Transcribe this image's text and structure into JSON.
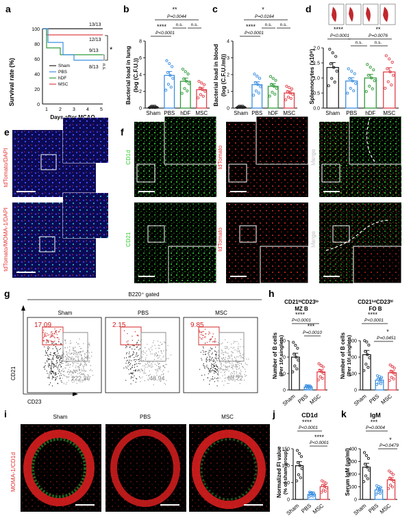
{
  "panels": {
    "a": {
      "letter": "a",
      "ylabel": "Survival rate (%)",
      "xlabel": "Days after MCAO",
      "yticks": [
        "0",
        "20",
        "40",
        "60",
        "80",
        "100"
      ],
      "xticks": [
        "1",
        "2",
        "3",
        "4",
        "5"
      ],
      "legend": [
        "Sham",
        "PBS",
        "hDF",
        "MSC"
      ],
      "counts": [
        "13/13",
        "12/13",
        "9/13",
        "8/13"
      ],
      "sig": [
        "*",
        "n.s."
      ]
    },
    "b": {
      "letter": "b",
      "ylabel": "Bacterial load in lung",
      "ylabel2": "(log (C.F.U.))",
      "yticks": [
        "0",
        "2",
        "4",
        "6",
        "8"
      ],
      "groups": [
        "Sham",
        "PBS",
        "hDF",
        "MSC"
      ],
      "means": [
        0.1,
        3.9,
        3.2,
        2.2
      ],
      "ymax": 8,
      "sig_top": "**",
      "p_top": "P=0.0044",
      "sig_mid": "****",
      "p_mid": "P<0.0001",
      "ns1": "n.s.",
      "ns2": "n.s."
    },
    "c": {
      "letter": "c",
      "ylabel": "Bacterial load in blood",
      "ylabel2": "(log (C.F.U./ml))",
      "yticks": [
        "0",
        "1",
        "2",
        "3",
        "4"
      ],
      "groups": [
        "Sham",
        "PBS",
        "hDF",
        "MSC"
      ],
      "means": [
        0.05,
        1.4,
        1.3,
        0.9
      ],
      "ymax": 4,
      "sig_top": "*",
      "p_top": "P=0.0164",
      "sig_mid": "****",
      "p_mid": "P<0.0001",
      "ns1": "n.s.",
      "ns2": "n.s."
    },
    "d": {
      "letter": "d",
      "ylabel": "Spleenocytes (x10⁸)",
      "yticks": [
        "0.0",
        "0.5",
        "1.0",
        "1.5",
        "2.0"
      ],
      "groups": [
        "Sham",
        "PBS",
        "hDF",
        "MSC"
      ],
      "means": [
        1.35,
        0.9,
        1.0,
        1.2
      ],
      "ymax": 2,
      "sig1": "****",
      "p1": "P<0.0001",
      "sig2": "**",
      "p2": "P=0.0076",
      "ns1": "n.s.",
      "ns2": "n.s."
    },
    "e": {
      "letter": "e",
      "label1": "tdTomato/DAPI",
      "label2": "tdTomato/MOMA-1/DAPI"
    },
    "f": {
      "letter": "f",
      "row1": [
        "CD1d",
        "tdTomato",
        "Merge"
      ],
      "row2": [
        "CD21",
        "tdTomato",
        "Merge"
      ]
    },
    "g": {
      "letter": "g",
      "gate": "B220⁺ gated",
      "titles": [
        "Sham",
        "PBS",
        "MSC"
      ],
      "red": [
        "17.09",
        "2.15",
        "9.85"
      ],
      "gray": [
        "222.36",
        "48.94",
        "68.72"
      ],
      "xlabel": "CD23",
      "ylabel": "CD21"
    },
    "h": {
      "letter": "h",
      "title1": "CD21ʰⁱCD23ˡᵒ",
      "sub1": "MZ B",
      "title2": "CD21ⁱⁿᵗCD23ʰⁱ",
      "sub2": "FO B",
      "ylabel": "Number of B cells",
      "ylabel2": "(Per 10³ singlets)",
      "yticks1": [
        "0",
        "10",
        "20",
        "30"
      ],
      "yticks2": [
        "0",
        "100",
        "200",
        "300"
      ],
      "groups": [
        "Sham",
        "PBS",
        "MSC"
      ],
      "means1": [
        20,
        1.8,
        11
      ],
      "means2": [
        215,
        60,
        105
      ],
      "sigA1": "****",
      "pA1": "P<0.0001",
      "sigA2": "***",
      "pA2": "P=0.0010",
      "sigB1": "****",
      "pB1": "P<0.0001",
      "sigB2": "*",
      "pB2": "P=0.0451"
    },
    "i": {
      "letter": "i",
      "titles": [
        "Sham",
        "PBS",
        "MSC"
      ],
      "label": "MOMA-1/CD1d"
    },
    "j": {
      "letter": "j",
      "title": "CD1d",
      "ylabel": "Normalized FI value",
      "ylabel2": "(% of sham group)",
      "yticks": [
        "0",
        "50",
        "100",
        "150"
      ],
      "groups": [
        "Sham",
        "PBS",
        "MSC"
      ],
      "means": [
        100,
        15,
        38
      ],
      "sig1": "****",
      "p1": "P<0.0001",
      "sig2": "****",
      "p2": "P<0.0001"
    },
    "k": {
      "letter": "k",
      "title": "IgM",
      "ylabel": "Serum IgM (μg/ml)",
      "yticks": [
        "0",
        "100",
        "200",
        "300",
        "400"
      ],
      "groups": [
        "Sham",
        "PBS",
        "MSC"
      ],
      "means": [
        255,
        75,
        155
      ],
      "sig1": "***",
      "p1": "P=0.0004",
      "sig2": "*",
      "p2": "P=0.0479"
    }
  },
  "colors": {
    "sham": "#222222",
    "pbs": "#3b8fe0",
    "hdf": "#2e9a3a",
    "msc": "#e0414a"
  }
}
